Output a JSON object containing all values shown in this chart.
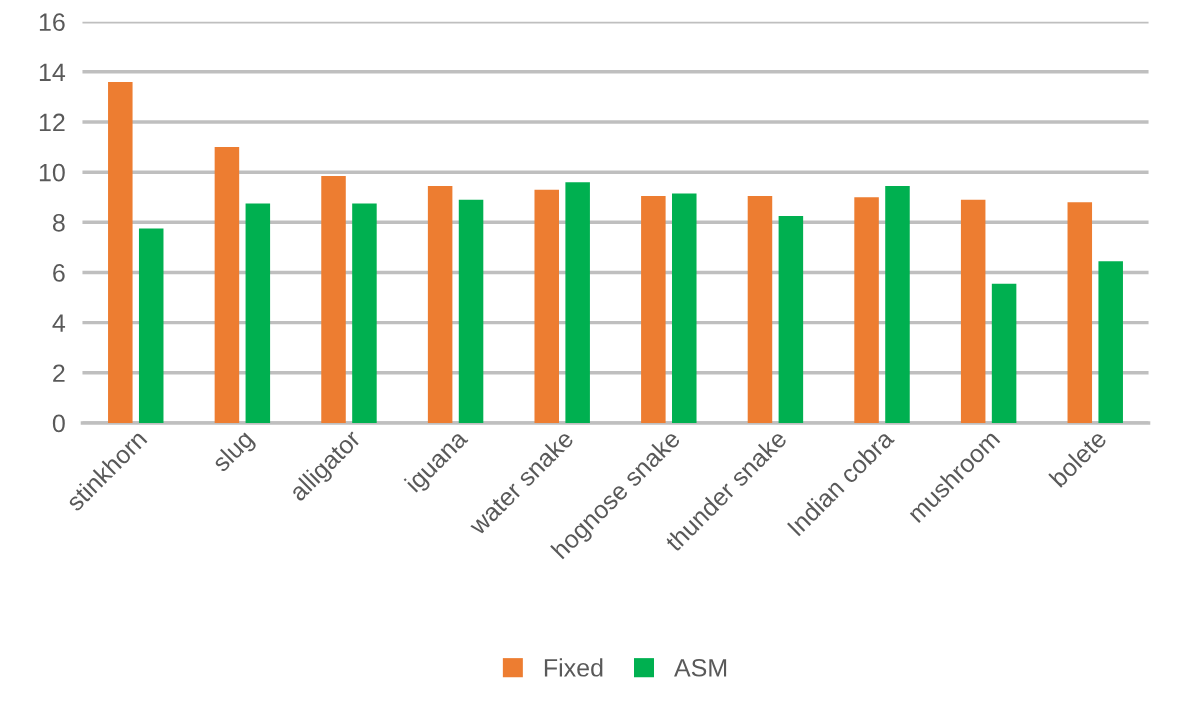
{
  "chart_data": {
    "type": "bar",
    "categories": [
      "stinkhorn",
      "slug",
      "alligator",
      "iguana",
      "water snake",
      "hognose snake",
      "thunder snake",
      "Indian cobra",
      "mushroom",
      "bolete"
    ],
    "series": [
      {
        "name": "Fixed",
        "color": "#ed7d31",
        "values": [
          13.6,
          11.0,
          9.85,
          9.45,
          9.3,
          9.05,
          9.05,
          9.0,
          8.9,
          8.8
        ]
      },
      {
        "name": "ASM",
        "color": "#00b050",
        "values": [
          7.75,
          8.75,
          8.75,
          8.9,
          9.6,
          9.15,
          8.25,
          9.45,
          5.55,
          6.45
        ]
      }
    ],
    "ylim": [
      0,
      16
    ],
    "yticks": [
      0,
      2,
      4,
      6,
      8,
      10,
      12,
      14,
      16
    ],
    "grid": "y",
    "legend": "bottom"
  }
}
